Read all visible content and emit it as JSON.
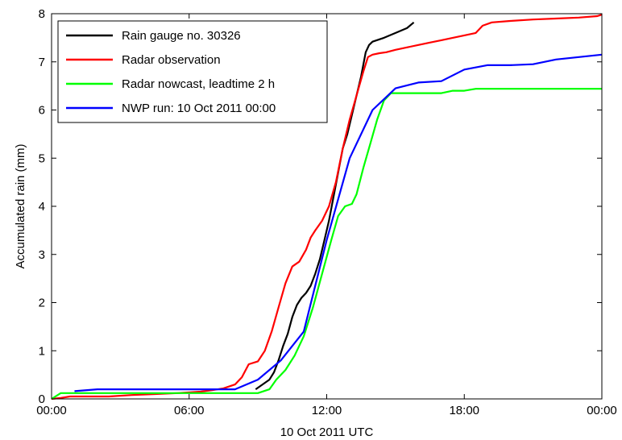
{
  "chart_data": {
    "type": "line",
    "xlabel": "10 Oct 2011 UTC",
    "ylabel": "Accumulated rain (mm)",
    "xlim": [
      0,
      24
    ],
    "ylim": [
      0,
      8
    ],
    "x_ticks": [
      {
        "value": 0,
        "label": "00:00"
      },
      {
        "value": 6,
        "label": "06:00"
      },
      {
        "value": 12,
        "label": "12:00"
      },
      {
        "value": 18,
        "label": "18:00"
      },
      {
        "value": 24,
        "label": "00:00"
      }
    ],
    "y_ticks": [
      {
        "value": 0,
        "label": "0"
      },
      {
        "value": 1,
        "label": "1"
      },
      {
        "value": 2,
        "label": "2"
      },
      {
        "value": 3,
        "label": "3"
      },
      {
        "value": 4,
        "label": "4"
      },
      {
        "value": 5,
        "label": "5"
      },
      {
        "value": 6,
        "label": "6"
      },
      {
        "value": 7,
        "label": "7"
      },
      {
        "value": 8,
        "label": "8"
      }
    ],
    "grid": false,
    "legend_position": "top-left",
    "series": [
      {
        "name": "Rain gauge no. 30326",
        "color": "#000000",
        "x": [
          8.9,
          9.5,
          9.7,
          9.9,
          10.1,
          10.3,
          10.5,
          10.7,
          10.9,
          11.1,
          11.3,
          11.5,
          11.7,
          11.9,
          12.1,
          12.3,
          12.5,
          12.7,
          12.9,
          13.1,
          13.3,
          13.5,
          13.7,
          13.85,
          14.0,
          14.5,
          15.0,
          15.5,
          15.8
        ],
        "y": [
          0.2,
          0.4,
          0.55,
          0.8,
          1.1,
          1.35,
          1.7,
          1.95,
          2.1,
          2.2,
          2.35,
          2.6,
          2.9,
          3.3,
          3.7,
          4.2,
          4.7,
          5.2,
          5.5,
          5.9,
          6.3,
          6.7,
          7.2,
          7.35,
          7.42,
          7.5,
          7.6,
          7.7,
          7.82
        ]
      },
      {
        "name": "Radar observation",
        "color": "#ff0000",
        "x": [
          0.0,
          0.4,
          0.8,
          1.5,
          2.5,
          3.5,
          4.5,
          5.5,
          6.5,
          7.0,
          7.5,
          8.0,
          8.3,
          8.6,
          9.0,
          9.3,
          9.6,
          9.9,
          10.2,
          10.5,
          10.8,
          11.1,
          11.3,
          11.5,
          11.8,
          12.1,
          12.4,
          12.7,
          13.0,
          13.3,
          13.6,
          13.8,
          14.0,
          14.3,
          14.6,
          15.0,
          15.5,
          16.0,
          16.5,
          17.0,
          17.5,
          18.0,
          18.5,
          18.8,
          19.2,
          20.0,
          21.0,
          22.0,
          23.0,
          23.8,
          24.0
        ],
        "y": [
          0.0,
          0.02,
          0.05,
          0.05,
          0.05,
          0.08,
          0.1,
          0.12,
          0.15,
          0.18,
          0.22,
          0.3,
          0.45,
          0.72,
          0.78,
          1.0,
          1.4,
          1.9,
          2.4,
          2.75,
          2.85,
          3.1,
          3.35,
          3.5,
          3.7,
          4.0,
          4.5,
          5.2,
          5.8,
          6.3,
          6.8,
          7.1,
          7.15,
          7.18,
          7.2,
          7.25,
          7.3,
          7.35,
          7.4,
          7.45,
          7.5,
          7.55,
          7.6,
          7.75,
          7.82,
          7.85,
          7.88,
          7.9,
          7.92,
          7.95,
          7.98
        ]
      },
      {
        "name": "Radar nowcast, leadtime 2 h",
        "color": "#00ff00",
        "x": [
          0.0,
          0.4,
          1.0,
          2.0,
          4.0,
          6.0,
          7.0,
          8.0,
          8.5,
          9.0,
          9.5,
          9.8,
          10.2,
          10.6,
          11.0,
          11.4,
          11.8,
          12.2,
          12.5,
          12.8,
          13.1,
          13.3,
          13.6,
          13.9,
          14.2,
          14.5,
          14.8,
          15.2,
          15.6,
          16.0,
          17.0,
          17.5,
          18.0,
          18.5,
          20.0,
          22.0,
          24.0
        ],
        "y": [
          0.0,
          0.12,
          0.12,
          0.12,
          0.12,
          0.12,
          0.12,
          0.12,
          0.12,
          0.12,
          0.2,
          0.4,
          0.6,
          0.9,
          1.3,
          1.9,
          2.6,
          3.3,
          3.8,
          4.0,
          4.05,
          4.25,
          4.8,
          5.3,
          5.8,
          6.2,
          6.35,
          6.35,
          6.35,
          6.35,
          6.35,
          6.4,
          6.4,
          6.44,
          6.44,
          6.44,
          6.44
        ]
      },
      {
        "name": "NWP run: 10 Oct 2011 00:00",
        "color": "#0000ff",
        "x": [
          1.0,
          2.0,
          3.0,
          4.0,
          5.0,
          6.0,
          7.0,
          8.0,
          9.0,
          10.0,
          11.0,
          12.0,
          13.0,
          14.0,
          15.0,
          16.0,
          17.0,
          18.0,
          19.0,
          20.0,
          21.0,
          22.0,
          23.0,
          24.0
        ],
        "y": [
          0.16,
          0.2,
          0.2,
          0.2,
          0.2,
          0.2,
          0.2,
          0.2,
          0.4,
          0.8,
          1.4,
          3.3,
          5.0,
          6.0,
          6.45,
          6.57,
          6.6,
          6.84,
          6.93,
          6.93,
          6.95,
          7.05,
          7.1,
          7.15
        ]
      }
    ]
  }
}
